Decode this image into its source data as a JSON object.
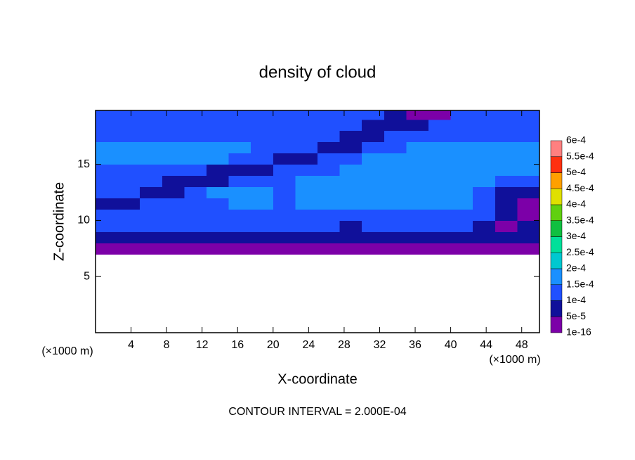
{
  "chart_data": {
    "type": "contour",
    "title": "density of cloud",
    "xlabel": "X-coordinate",
    "ylabel": "Z-coordinate",
    "xunit": "(×1000 m)",
    "yunit": "(×1000 m)",
    "footer": "CONTOUR INTERVAL = 2.000E-04",
    "xlim": [
      0,
      50
    ],
    "ylim": [
      0,
      19.8
    ],
    "xticks": [
      4,
      8,
      12,
      16,
      20,
      24,
      28,
      32,
      36,
      40,
      44,
      48
    ],
    "yticks": [
      5,
      10,
      15
    ],
    "x": [
      1.25,
      3.75,
      6.25,
      8.75,
      11.25,
      13.75,
      16.25,
      18.75,
      21.25,
      23.75,
      26.25,
      28.75,
      31.25,
      33.75,
      36.25,
      38.75,
      41.25,
      43.75,
      46.25,
      48.75
    ],
    "y": [
      7.5,
      8.5,
      9.5,
      10.5,
      11.5,
      12.5,
      13.5,
      14.5,
      15.5,
      16.5,
      17.5,
      18.5,
      19.5
    ],
    "z": [
      [
        3e-05,
        3e-05,
        3e-05,
        3e-05,
        3e-05,
        3e-05,
        3e-05,
        3e-05,
        3e-05,
        3e-05,
        3e-05,
        3e-05,
        3e-05,
        3e-05,
        3e-05,
        3e-05,
        3e-05,
        3e-05,
        3e-05,
        3e-05
      ],
      [
        7e-05,
        7e-05,
        7e-05,
        7e-05,
        7e-05,
        7e-05,
        7e-05,
        7e-05,
        7e-05,
        7e-05,
        7e-05,
        7e-05,
        7e-05,
        7e-05,
        7e-05,
        7e-05,
        7e-05,
        7e-05,
        7e-05,
        7e-05
      ],
      [
        0.00012,
        0.00012,
        0.00012,
        0.00012,
        0.00012,
        0.00012,
        0.00012,
        0.00012,
        0.00012,
        0.00012,
        0.00012,
        7e-05,
        0.00012,
        0.00012,
        0.00012,
        0.00012,
        0.00012,
        7e-05,
        3e-05,
        7e-05
      ],
      [
        0.00012,
        0.00012,
        0.00012,
        0.00012,
        0.00012,
        0.00012,
        0.00012,
        0.00012,
        0.00012,
        0.00012,
        0.00012,
        0.00012,
        0.00012,
        0.00012,
        0.00012,
        0.00012,
        0.00012,
        0.00012,
        7e-05,
        3e-05
      ],
      [
        7e-05,
        7e-05,
        0.00012,
        0.00012,
        0.00012,
        0.00012,
        0.00016,
        0.00016,
        0.00012,
        0.00016,
        0.00016,
        0.00016,
        0.00016,
        0.00016,
        0.00016,
        0.00016,
        0.00016,
        0.00012,
        7e-05,
        3e-05
      ],
      [
        0.00012,
        0.00012,
        7e-05,
        7e-05,
        0.00012,
        0.00016,
        0.00016,
        0.00016,
        0.00012,
        0.00016,
        0.00016,
        0.00016,
        0.00016,
        0.00016,
        0.00016,
        0.00016,
        0.00016,
        0.00012,
        7e-05,
        7e-05
      ],
      [
        0.00012,
        0.00012,
        0.00012,
        7e-05,
        7e-05,
        7e-05,
        0.00012,
        0.00012,
        0.00012,
        0.00016,
        0.00016,
        0.00016,
        0.00016,
        0.00016,
        0.00016,
        0.00016,
        0.00016,
        0.00016,
        0.00012,
        0.00012
      ],
      [
        0.00012,
        0.00012,
        0.00012,
        0.00012,
        0.00012,
        7e-05,
        7e-05,
        7e-05,
        0.00012,
        0.00012,
        0.00012,
        0.00016,
        0.00016,
        0.00016,
        0.00016,
        0.00016,
        0.00016,
        0.00016,
        0.00016,
        0.00016
      ],
      [
        0.00016,
        0.00016,
        0.00016,
        0.00016,
        0.00016,
        0.00016,
        0.00012,
        0.00012,
        7e-05,
        7e-05,
        0.00012,
        0.00012,
        0.00016,
        0.00016,
        0.00016,
        0.00016,
        0.00016,
        0.00016,
        0.00016,
        0.00016
      ],
      [
        0.00016,
        0.00016,
        0.00016,
        0.00016,
        0.00016,
        0.00016,
        0.00016,
        0.00012,
        0.00012,
        0.00012,
        7e-05,
        7e-05,
        0.00012,
        0.00012,
        0.00016,
        0.00016,
        0.00016,
        0.00016,
        0.00016,
        0.00016
      ],
      [
        0.00012,
        0.00012,
        0.00012,
        0.00012,
        0.00012,
        0.00012,
        0.00012,
        0.00012,
        0.00012,
        0.00012,
        0.00012,
        7e-05,
        7e-05,
        0.00012,
        0.00012,
        0.00012,
        0.00012,
        0.00012,
        0.00012,
        0.00012
      ],
      [
        0.00012,
        0.00012,
        0.00012,
        0.00012,
        0.00012,
        0.00012,
        0.00012,
        0.00012,
        0.00012,
        0.00012,
        0.00012,
        0.00012,
        7e-05,
        7e-05,
        7e-05,
        0.00012,
        0.00012,
        0.00012,
        0.00012,
        0.00012
      ],
      [
        0.00012,
        0.00012,
        0.00012,
        0.00012,
        0.00012,
        0.00012,
        0.00012,
        0.00012,
        0.00012,
        0.00012,
        0.00012,
        0.00012,
        0.00012,
        7e-05,
        3e-05,
        3e-05,
        0.00012,
        0.00012,
        0.00012,
        0.00012
      ]
    ],
    "colorbar": {
      "ticks": [
        {
          "value": 1e-16,
          "label": "1e-16"
        },
        {
          "value": 5e-05,
          "label": "5e-5"
        },
        {
          "value": 0.0001,
          "label": "1e-4"
        },
        {
          "value": 0.00015,
          "label": "1.5e-4"
        },
        {
          "value": 0.0002,
          "label": "2e-4"
        },
        {
          "value": 0.00025,
          "label": "2.5e-4"
        },
        {
          "value": 0.0003,
          "label": "3e-4"
        },
        {
          "value": 0.00035,
          "label": "3.5e-4"
        },
        {
          "value": 0.0004,
          "label": "4e-4"
        },
        {
          "value": 0.00045,
          "label": "4.5e-4"
        },
        {
          "value": 0.0005,
          "label": "5e-4"
        },
        {
          "value": 0.00055,
          "label": "5.5e-4"
        },
        {
          "value": 0.0006,
          "label": "6e-4"
        }
      ],
      "colors": [
        "#7c00a8",
        "#10109a",
        "#2050ff",
        "#1a90ff",
        "#00c8d0",
        "#00e09a",
        "#10c040",
        "#60d010",
        "#e0e000",
        "#ffa000",
        "#ff3010",
        "#ff8080"
      ]
    }
  }
}
